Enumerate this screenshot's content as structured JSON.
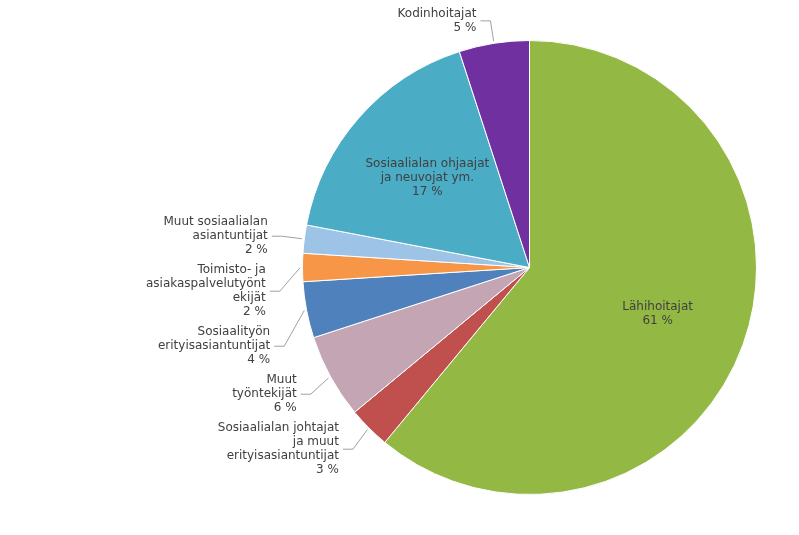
{
  "chart_data": {
    "type": "pie",
    "categories": [
      "Lähihoitajat",
      "Sosiaalialan johtajat\nja muut\nerityisasiantuntijat",
      "Muut\ntyöntekijät",
      "Sosiaalityön\nerityisasiantuntijat",
      "Toimisto- ja\nasiakaspalvelutyönt\nekijät",
      "Muut sosiaalialan\nasiantuntijat",
      "Sosiaalialan ohjaajat\nja neuvojat ym.",
      "Kodinhoitajat"
    ],
    "values": [
      61,
      3,
      6,
      4,
      2,
      2,
      17,
      5
    ],
    "value_labels": [
      "61 %",
      "3 %",
      "6 %",
      "4 %",
      "2 %",
      "2 %",
      "17 %",
      "5 %"
    ],
    "colors": [
      "#93b843",
      "#c0504d",
      "#c3a5b4",
      "#4f81bd",
      "#f79646",
      "#9dc3e6",
      "#4bacc6",
      "#7030a0"
    ],
    "data_labels": true
  }
}
